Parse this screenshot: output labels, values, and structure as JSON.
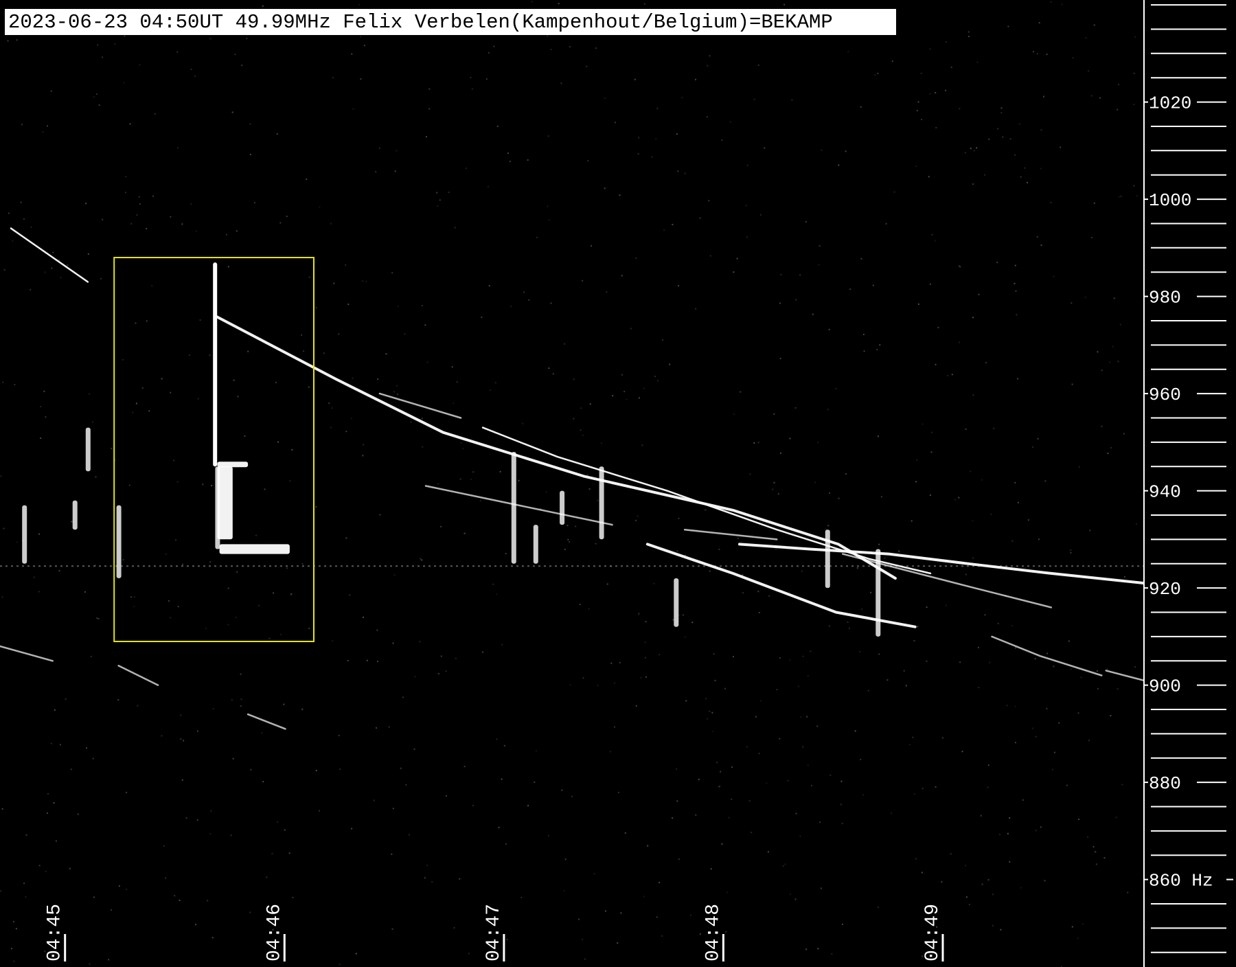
{
  "header": {
    "text": "2023-06-23 04:50UT 49.99MHz Felix Verbelen(Kampenhout/Belgium)=BEKAMP"
  },
  "colors": {
    "background": "#000000",
    "signal": "#ffffff",
    "annotation_box": "#e6e600",
    "axis": "#ffffff"
  },
  "chart_data": {
    "type": "heatmap",
    "title": "2023-06-23 04:50UT 49.99MHz Felix Verbelen(Kampenhout/Belgium)=BEKAMP",
    "xlabel": "",
    "ylabel": "Hz",
    "x_ticks": [
      "04:45",
      "04:46",
      "04:47",
      "04:48",
      "04:49"
    ],
    "x_tick_minutes": [
      0,
      1,
      2,
      3,
      4
    ],
    "xlim_minutes": [
      -0.24,
      4.97
    ],
    "y_ticks": [
      1020,
      1000,
      980,
      960,
      940,
      920,
      900,
      880,
      860
    ],
    "y_tick_labels": [
      "1020",
      "1000",
      "980",
      "960",
      "940",
      "920",
      "900",
      "880",
      "860 Hz"
    ],
    "ylim": [
      842,
      1041
    ],
    "y_minor_step": 5,
    "annotation_box": {
      "x_minutes": [
        0.28,
        1.19
      ],
      "y_hz": [
        909,
        988
      ]
    },
    "traces": [
      {
        "x": [
          -0.19,
          0.16
        ],
        "y": [
          994,
          983
        ]
      },
      {
        "x": [
          0.74,
          1.29,
          1.78,
          2.42,
          3.1,
          3.58,
          3.84
        ],
        "y": [
          976,
          963,
          952,
          943,
          936,
          929,
          922
        ]
      },
      {
        "x": [
          1.96,
          2.3,
          2.8,
          3.3,
          3.72,
          4.0
        ],
        "y": [
          953,
          947,
          940,
          932,
          926,
          923
        ]
      },
      {
        "x": [
          3.13,
          3.45,
          3.81,
          4.17,
          4.55,
          4.97
        ],
        "y": [
          929,
          928,
          927,
          925,
          923,
          921
        ]
      },
      {
        "x": [
          2.71,
          3.1,
          3.57,
          3.93
        ],
        "y": [
          929,
          923,
          915,
          912
        ]
      },
      {
        "x": [
          3.6,
          4.2,
          4.55
        ],
        "y": [
          927,
          920,
          916
        ]
      },
      {
        "x": [
          4.28,
          4.5,
          4.78
        ],
        "y": [
          910,
          906,
          902
        ]
      },
      {
        "x": [
          4.8,
          4.97
        ],
        "y": [
          903,
          901
        ]
      },
      {
        "x": [
          -0.24,
          0.0
        ],
        "y": [
          908,
          905
        ]
      },
      {
        "x": [
          0.3,
          0.48
        ],
        "y": [
          904,
          900
        ]
      },
      {
        "x": [
          0.89,
          1.06
        ],
        "y": [
          894,
          891
        ]
      },
      {
        "x": [
          2.88,
          3.3
        ],
        "y": [
          932,
          930
        ]
      },
      {
        "x": [
          1.49,
          1.86
        ],
        "y": [
          960,
          955
        ]
      },
      {
        "x": [
          1.7,
          2.55
        ],
        "y": [
          941,
          933
        ]
      }
    ],
    "bursts": [
      {
        "x": 0.74,
        "y": [
          945,
          987
        ]
      },
      {
        "x": 0.75,
        "y": [
          928,
          945
        ]
      },
      {
        "x": 0.16,
        "y": [
          944,
          953
        ]
      },
      {
        "x": 0.1,
        "y": [
          932,
          938
        ]
      },
      {
        "x": 0.3,
        "y": [
          922,
          937
        ]
      },
      {
        "x": 2.1,
        "y": [
          925,
          948
        ]
      },
      {
        "x": 2.2,
        "y": [
          925,
          933
        ]
      },
      {
        "x": 2.32,
        "y": [
          933,
          940
        ]
      },
      {
        "x": 2.5,
        "y": [
          930,
          945
        ]
      },
      {
        "x": 2.84,
        "y": [
          912,
          922
        ]
      },
      {
        "x": 3.53,
        "y": [
          920,
          932
        ]
      },
      {
        "x": 3.76,
        "y": [
          910,
          928
        ]
      },
      {
        "x": -0.13,
        "y": [
          925,
          937
        ]
      }
    ],
    "blobs": [
      {
        "x": [
          0.75,
          0.89
        ],
        "y": [
          945,
          946
        ]
      },
      {
        "x": [
          0.76,
          1.08
        ],
        "y": [
          927,
          929
        ]
      },
      {
        "x": [
          0.75,
          0.82
        ],
        "y": [
          930,
          945
        ]
      }
    ],
    "horizontal_trace": {
      "x": [
        -0.24,
        4.97
      ],
      "y": 924.5
    }
  }
}
